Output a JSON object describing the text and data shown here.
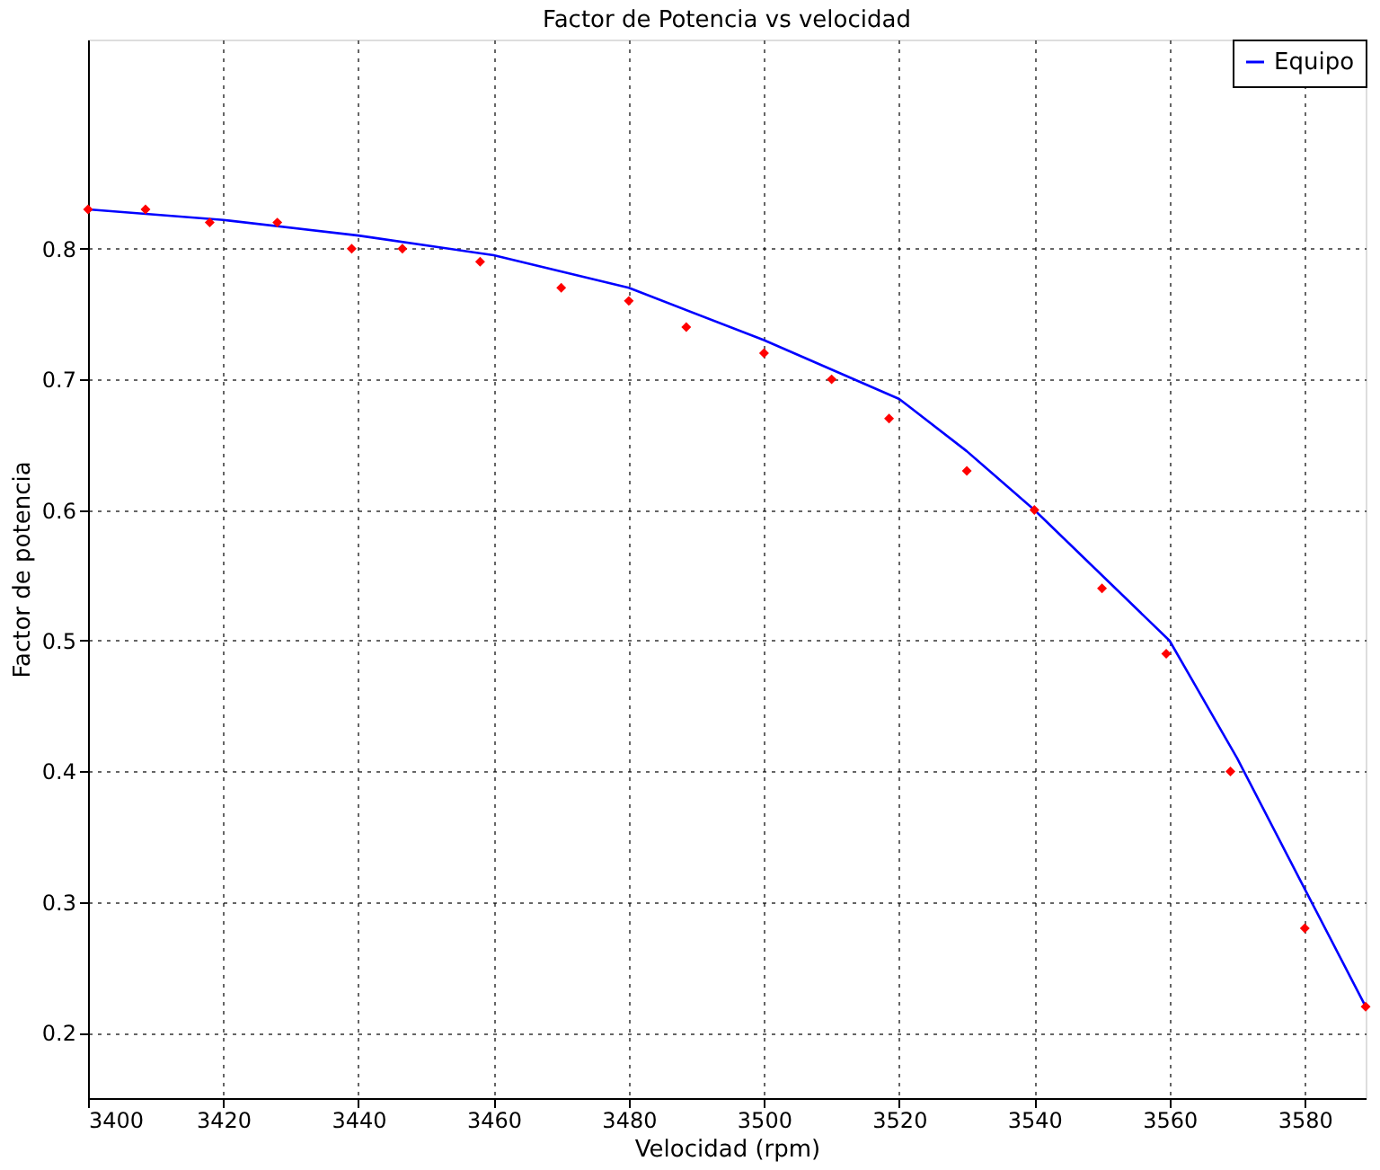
{
  "chart_data": {
    "type": "line",
    "title": "Factor de Potencia  vs  velocidad",
    "xlabel": "Velocidad (rpm)",
    "ylabel": "Factor de potencia",
    "xlim": [
      3400,
      3589
    ],
    "xticks": [
      3400,
      3420,
      3440,
      3460,
      3480,
      3500,
      3520,
      3540,
      3560,
      3580
    ],
    "ylim": [
      0.15,
      0.96
    ],
    "yticks": [
      0.2,
      0.3,
      0.4,
      0.5,
      0.6,
      0.7,
      0.8
    ],
    "grid": true,
    "legend": "top right",
    "series": [
      {
        "name": "Equipo",
        "color": "#0000ff",
        "line_style": "solid",
        "marker": "none",
        "x": [
          3400,
          3420,
          3440,
          3460,
          3480,
          3500,
          3520,
          3530,
          3540,
          3550,
          3560,
          3570,
          3580,
          3589
        ],
        "values": [
          0.83,
          0.822,
          0.81,
          0.795,
          0.77,
          0.73,
          0.685,
          0.645,
          0.6,
          0.55,
          0.5,
          0.41,
          0.31,
          0.22
        ]
      },
      {
        "type": "scatter",
        "color": "#ff0000",
        "marker": "diamond",
        "x": [
          3400,
          3408.5,
          3418,
          3428,
          3439,
          3446.5,
          3458,
          3470,
          3480,
          3488.5,
          3500,
          3510,
          3518.5,
          3530,
          3540,
          3550,
          3559.5,
          3569,
          3580,
          3589
        ],
        "values": [
          0.83,
          0.83,
          0.82,
          0.82,
          0.8,
          0.8,
          0.79,
          0.77,
          0.76,
          0.74,
          0.72,
          0.7,
          0.67,
          0.63,
          0.6,
          0.54,
          0.49,
          0.4,
          0.28,
          0.22
        ]
      }
    ]
  }
}
